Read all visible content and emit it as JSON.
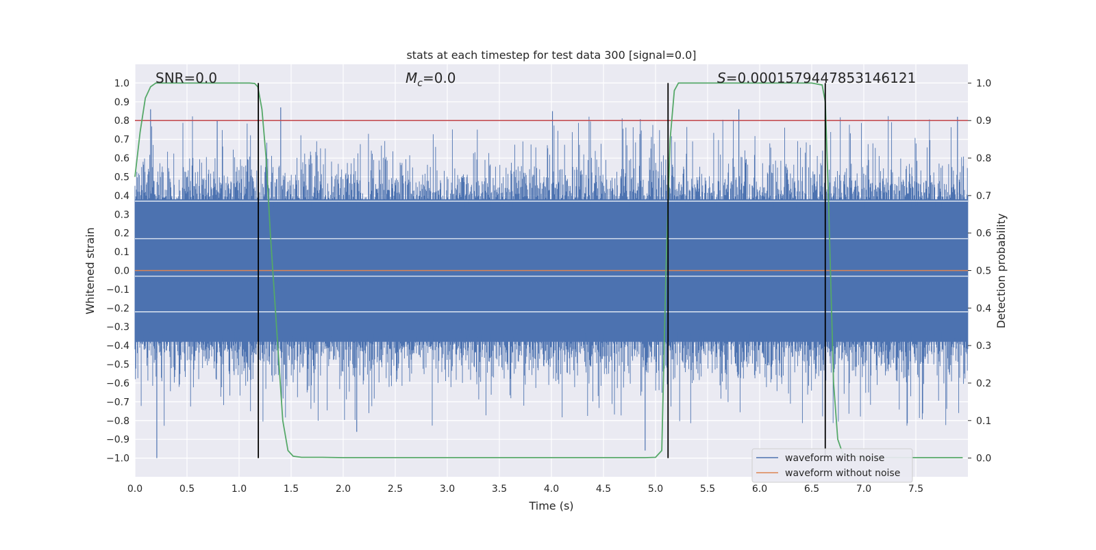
{
  "chart_data": {
    "type": "line",
    "title": "stats at each timestep for test data 300 [signal=0.0]",
    "xlabel": "Time (s)",
    "ylabel": "Whitened strain",
    "ylabel_right": "Detection probability",
    "xlim": [
      0.0,
      8.0
    ],
    "ylim": [
      -1.1,
      1.1
    ],
    "ylim_right": [
      -0.05,
      1.05
    ],
    "xticks": [
      "0.0",
      "0.5",
      "1.0",
      "1.5",
      "2.0",
      "2.5",
      "3.0",
      "3.5",
      "4.0",
      "4.5",
      "5.0",
      "5.5",
      "6.0",
      "6.5",
      "7.0",
      "7.5"
    ],
    "yticks": [
      "1.0",
      "0.9",
      "0.8",
      "0.7",
      "0.6",
      "0.5",
      "0.4",
      "0.3",
      "0.2",
      "0.1",
      "0.0",
      "-0.1",
      "-0.2",
      "-0.3",
      "-0.4",
      "-0.5",
      "-0.6",
      "-0.7",
      "-0.8",
      "-0.9",
      "-1.0"
    ],
    "yticks_right": [
      "1.0",
      "0.9",
      "0.8",
      "0.7",
      "0.6",
      "0.5",
      "0.4",
      "0.3",
      "0.2",
      "0.1",
      "0.0"
    ],
    "annotations": {
      "snr": "SNR=0.0",
      "mc_symbol": "M",
      "mc_sub": "c",
      "mc_value": "=0.0",
      "s_symbol": "S",
      "s_value": "=0.0001579447853146121"
    },
    "grid": true,
    "legend_position": "lower-right",
    "series": [
      {
        "name": "waveform with noise",
        "color": "#4c72b0",
        "description_values": "dense noise, mostly within [-0.45, 0.45], peaks near ±0.85, extrema -1.0 at t≈0.21 and t≈4.9"
      },
      {
        "name": "waveform without noise",
        "color": "#dd8452",
        "values_y": 0.0
      },
      {
        "name": "detection probability",
        "color": "#55a868",
        "axis": "right",
        "x": [
          0.0,
          0.05,
          0.1,
          0.15,
          0.2,
          0.4,
          0.6,
          0.8,
          1.0,
          1.1,
          1.15,
          1.18,
          1.22,
          1.26,
          1.3,
          1.36,
          1.42,
          1.47,
          1.52,
          1.6,
          1.8,
          2.0,
          2.5,
          3.0,
          3.5,
          4.0,
          4.5,
          4.9,
          5.0,
          5.06,
          5.1,
          5.14,
          5.18,
          5.22,
          5.3,
          5.5,
          6.0,
          6.5,
          6.6,
          6.63,
          6.66,
          6.71,
          6.75,
          6.8,
          7.0,
          7.5,
          7.95
        ],
        "y": [
          0.75,
          0.87,
          0.96,
          0.99,
          1.0,
          1.0,
          1.0,
          1.0,
          1.0,
          1.0,
          0.999,
          0.99,
          0.93,
          0.8,
          0.6,
          0.35,
          0.1,
          0.02,
          0.005,
          0.002,
          0.002,
          0.001,
          0.001,
          0.001,
          0.001,
          0.001,
          0.001,
          0.001,
          0.002,
          0.02,
          0.5,
          0.85,
          0.98,
          1.0,
          1.0,
          1.0,
          1.0,
          1.0,
          0.995,
          0.95,
          0.7,
          0.2,
          0.05,
          0.01,
          0.002,
          0.001,
          0.001
        ]
      },
      {
        "name": "threshold",
        "color": "#c44e52",
        "axis": "right",
        "values_y": 0.9
      }
    ],
    "vertical_markers_x": [
      1.185,
      5.12,
      6.63
    ],
    "legend": [
      {
        "label": "waveform with noise",
        "color": "#4c72b0"
      },
      {
        "label": "waveform without noise",
        "color": "#dd8452"
      }
    ]
  }
}
